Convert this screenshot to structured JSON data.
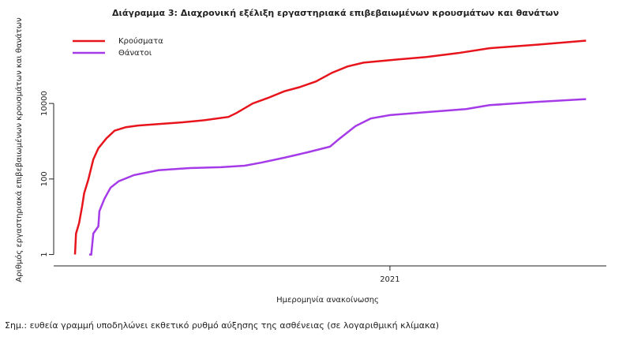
{
  "chart_data": {
    "type": "line",
    "title": "Διάγραμμα 3: Διαχρονική εξέλιξη εργαστηριακά επιβεβαιωμένων κρουσμάτων και θανάτων",
    "x_label": "Ημερομηνία ανακοίνωσης",
    "y_label": "Αριθμός εργαστηριακά επιβεβαιωμένων κρουσμάτων και θανάτων",
    "note": "Σημ.: ευθεία γραμμή υποδηλώνει εκθετικό ρυθμό αύξησης της ασθένειας (σε λογαριθμική κλίμακα)",
    "log_y": true,
    "legend": "top-left",
    "xlim": [
      -331,
      213
    ],
    "xticks": [
      {
        "value": 0,
        "label": "2021"
      }
    ],
    "ylim": [
      0.5,
      800000
    ],
    "yticks": [
      1,
      100,
      10000
    ],
    "series": [
      {
        "name": "Κρούσματα",
        "color": "#e8141c",
        "x": [
          -310,
          -309,
          -306,
          -303,
          -301,
          -297,
          -292,
          -287,
          -279,
          -271,
          -260,
          -248,
          -228,
          -205,
          -182,
          -159,
          -151,
          -135,
          -120,
          -104,
          -89,
          -73,
          -57,
          -42,
          -26,
          0,
          36,
          67,
          98,
          145,
          193
        ],
        "values": [
          1,
          3.6,
          6.8,
          18.7,
          42,
          95,
          330,
          650,
          1200,
          1900,
          2350,
          2600,
          2850,
          3150,
          3600,
          4400,
          5600,
          10000,
          14000,
          21000,
          27000,
          38000,
          65000,
          95000,
          120000,
          140000,
          170000,
          215000,
          290000,
          360000,
          460000
        ]
      },
      {
        "name": "Θάνατοι",
        "color": "#a53be8",
        "x": [
          -296,
          -294,
          -292,
          -287,
          -286,
          -281,
          -275,
          -267,
          -252,
          -228,
          -197,
          -166,
          -143,
          -127,
          -104,
          -81,
          -59,
          -50,
          -34,
          -19,
          0,
          36,
          75,
          98,
          145,
          193
        ],
        "values": [
          1,
          1,
          3.6,
          5.6,
          14,
          30,
          59,
          87,
          127,
          170,
          195,
          205,
          225,
          270,
          365,
          510,
          720,
          1150,
          2500,
          4000,
          4900,
          5900,
          7100,
          9000,
          11000,
          13000
        ]
      }
    ]
  }
}
